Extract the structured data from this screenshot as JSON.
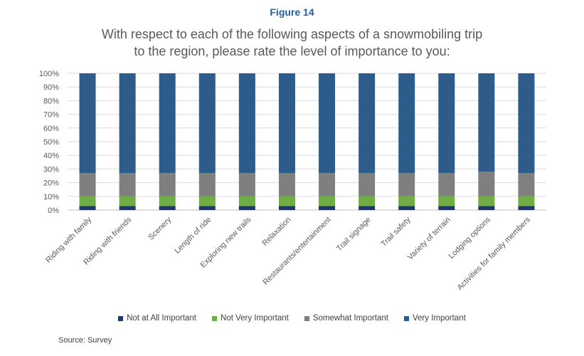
{
  "figure_label": "Figure 14",
  "source": "Source: Survey",
  "chart_data": {
    "type": "bar",
    "stacked": true,
    "title": "With respect to each of the following aspects of a snowmobiling trip to the region, please rate the level of importance to you:",
    "title_lines": [
      "With respect to each of the following aspects of a snowmobiling trip",
      "to the region, please rate the level of importance to you:"
    ],
    "categories": [
      "Riding with family",
      "Riding with friends",
      "Scenery",
      "Length of ride",
      "Exploring new trails",
      "Relaxation",
      "Restaurants/entertainment",
      "Trail signage",
      "Trail safety",
      "Variety of terrain",
      "Lodging options",
      "Activities for family members"
    ],
    "series": [
      {
        "name": "Not at All Important",
        "color": "#203864",
        "values": [
          3,
          3,
          3,
          3,
          3,
          3,
          3,
          3,
          3,
          3,
          3,
          3
        ]
      },
      {
        "name": "Not Very Important",
        "color": "#70ad47",
        "values": [
          7,
          7,
          7,
          7,
          7,
          7,
          7,
          7,
          7,
          7,
          7,
          7
        ]
      },
      {
        "name": "Somewhat Important",
        "color": "#7f7f7f",
        "values": [
          17,
          17,
          17,
          17,
          17,
          17,
          17,
          17,
          17,
          17,
          18,
          17
        ]
      },
      {
        "name": "Very Important",
        "color": "#2e5c8a",
        "values": [
          73,
          73,
          73,
          73,
          73,
          73,
          73,
          73,
          73,
          73,
          72,
          73
        ]
      }
    ],
    "ylim": [
      0,
      100
    ],
    "yticks": [
      "0%",
      "10%",
      "20%",
      "30%",
      "40%",
      "50%",
      "60%",
      "70%",
      "80%",
      "90%",
      "100%"
    ],
    "xlabel": "",
    "ylabel": "",
    "legend_position": "bottom",
    "grid": true
  }
}
